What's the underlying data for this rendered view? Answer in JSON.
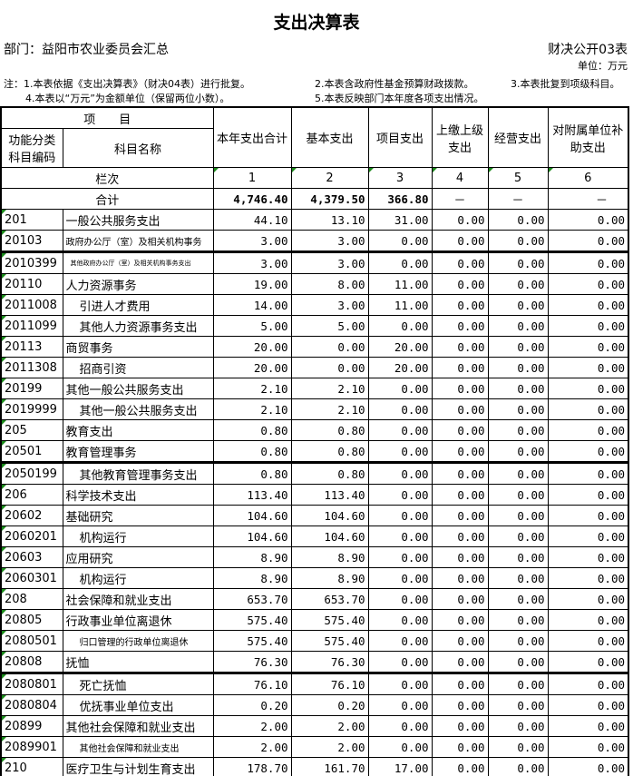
{
  "title": "支出决算表",
  "department": "部门：益阳市农业委员会汇总",
  "form_no": "财决公开03表",
  "unit": "单位：万元",
  "notes": [
    "注：1.本表依据《支出决算表》（财决04表）进行批复。",
    "2.本表含政府性基金预算财政拨款。",
    "3.本表批复到项级科目。",
    "4.本表以“万元”为金额单位（保留两位小数）。",
    "5.本表反映部门本年度各项支出情况。"
  ],
  "header": {
    "item": "项　　目",
    "code": "功能分类科目编码",
    "name": "科目名称",
    "cols": [
      "本年支出合计",
      "基本支出",
      "项目支出",
      "上缴上级支出",
      "经营支出",
      "对附属单位补助支出"
    ],
    "col_index_label": "栏次",
    "col_index": [
      "1",
      "2",
      "3",
      "4",
      "5",
      "6"
    ]
  },
  "total": {
    "label": "合计",
    "values": [
      "4,746.40",
      "4,379.50",
      "366.80",
      "－",
      "－",
      "－"
    ]
  },
  "rows": [
    {
      "code": "201",
      "name": "一般公共服务支出",
      "v": [
        "44.10",
        "13.10",
        "31.00",
        "0.00",
        "0.00",
        "0.00"
      ]
    },
    {
      "code": "20103",
      "name": "政府办公厅（室）及相关机构事务",
      "v": [
        "3.00",
        "3.00",
        "0.00",
        "0.00",
        "0.00",
        "0.00"
      ]
    },
    {
      "code": "2010399",
      "name": "其他政府办公厅（室）及相关机构事务支出",
      "v": [
        "3.00",
        "3.00",
        "0.00",
        "0.00",
        "0.00",
        "0.00"
      ]
    },
    {
      "code": "20110",
      "name": "人力资源事务",
      "v": [
        "19.00",
        "8.00",
        "11.00",
        "0.00",
        "0.00",
        "0.00"
      ]
    },
    {
      "code": "2011008",
      "name": "引进人才费用",
      "v": [
        "14.00",
        "3.00",
        "11.00",
        "0.00",
        "0.00",
        "0.00"
      ]
    },
    {
      "code": "2011099",
      "name": "其他人力资源事务支出",
      "v": [
        "5.00",
        "5.00",
        "0.00",
        "0.00",
        "0.00",
        "0.00"
      ]
    },
    {
      "code": "20113",
      "name": "商贸事务",
      "v": [
        "20.00",
        "0.00",
        "20.00",
        "0.00",
        "0.00",
        "0.00"
      ]
    },
    {
      "code": "2011308",
      "name": "招商引资",
      "v": [
        "20.00",
        "0.00",
        "20.00",
        "0.00",
        "0.00",
        "0.00"
      ]
    },
    {
      "code": "20199",
      "name": "其他一般公共服务支出",
      "v": [
        "2.10",
        "2.10",
        "0.00",
        "0.00",
        "0.00",
        "0.00"
      ]
    },
    {
      "code": "2019999",
      "name": "其他一般公共服务支出",
      "v": [
        "2.10",
        "2.10",
        "0.00",
        "0.00",
        "0.00",
        "0.00"
      ]
    },
    {
      "code": "205",
      "name": "教育支出",
      "v": [
        "0.80",
        "0.80",
        "0.00",
        "0.00",
        "0.00",
        "0.00"
      ]
    },
    {
      "code": "20501",
      "name": "教育管理事务",
      "v": [
        "0.80",
        "0.80",
        "0.00",
        "0.00",
        "0.00",
        "0.00"
      ]
    },
    {
      "code": "2050199",
      "name": "其他教育管理事务支出",
      "v": [
        "0.80",
        "0.80",
        "0.00",
        "0.00",
        "0.00",
        "0.00"
      ]
    },
    {
      "code": "206",
      "name": "科学技术支出",
      "v": [
        "113.40",
        "113.40",
        "0.00",
        "0.00",
        "0.00",
        "0.00"
      ]
    },
    {
      "code": "20602",
      "name": "基础研究",
      "v": [
        "104.60",
        "104.60",
        "0.00",
        "0.00",
        "0.00",
        "0.00"
      ]
    },
    {
      "code": "2060201",
      "name": "机构运行",
      "v": [
        "104.60",
        "104.60",
        "0.00",
        "0.00",
        "0.00",
        "0.00"
      ]
    },
    {
      "code": "20603",
      "name": "应用研究",
      "v": [
        "8.90",
        "8.90",
        "0.00",
        "0.00",
        "0.00",
        "0.00"
      ]
    },
    {
      "code": "2060301",
      "name": "机构运行",
      "v": [
        "8.90",
        "8.90",
        "0.00",
        "0.00",
        "0.00",
        "0.00"
      ]
    },
    {
      "code": "208",
      "name": "社会保障和就业支出",
      "v": [
        "653.70",
        "653.70",
        "0.00",
        "0.00",
        "0.00",
        "0.00"
      ]
    },
    {
      "code": "20805",
      "name": "行政事业单位离退休",
      "v": [
        "575.40",
        "575.40",
        "0.00",
        "0.00",
        "0.00",
        "0.00"
      ]
    },
    {
      "code": "2080501",
      "name": "归口管理的行政单位离退休",
      "v": [
        "575.40",
        "575.40",
        "0.00",
        "0.00",
        "0.00",
        "0.00"
      ]
    },
    {
      "code": "20808",
      "name": "抚恤",
      "v": [
        "76.30",
        "76.30",
        "0.00",
        "0.00",
        "0.00",
        "0.00"
      ]
    },
    {
      "code": "2080801",
      "name": "死亡抚恤",
      "v": [
        "76.10",
        "76.10",
        "0.00",
        "0.00",
        "0.00",
        "0.00"
      ]
    },
    {
      "code": "2080804",
      "name": "优抚事业单位支出",
      "v": [
        "0.20",
        "0.20",
        "0.00",
        "0.00",
        "0.00",
        "0.00"
      ]
    },
    {
      "code": "20899",
      "name": "其他社会保障和就业支出",
      "v": [
        "2.00",
        "2.00",
        "0.00",
        "0.00",
        "0.00",
        "0.00"
      ]
    },
    {
      "code": "2089901",
      "name": "其他社会保障和就业支出",
      "v": [
        "2.00",
        "2.00",
        "0.00",
        "0.00",
        "0.00",
        "0.00"
      ]
    },
    {
      "code": "210",
      "name": "医疗卫生与计划生育支出",
      "v": [
        "178.70",
        "161.70",
        "17.00",
        "0.00",
        "0.00",
        "0.00"
      ]
    }
  ]
}
